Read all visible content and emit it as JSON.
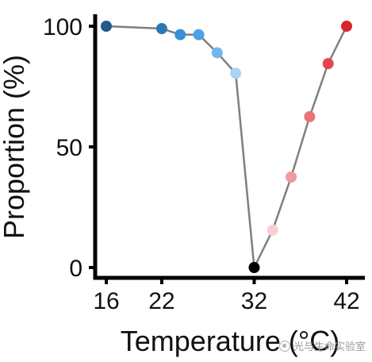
{
  "chart_data": {
    "type": "line",
    "title": "",
    "xlabel": "Temperature (°C)",
    "ylabel": "Proportion (%)",
    "xlim": [
      15,
      42.5
    ],
    "ylim": [
      -5,
      105
    ],
    "xticks": [
      16,
      22,
      32,
      42
    ],
    "yticks": [
      0,
      50,
      100
    ],
    "grid": false,
    "legend": "none",
    "line_color": "#7f7f7f",
    "points": [
      {
        "x": 16,
        "y": 100,
        "color": "#1f5a8e"
      },
      {
        "x": 22,
        "y": 99,
        "color": "#2878b8"
      },
      {
        "x": 24,
        "y": 96.5,
        "color": "#3a8fd6"
      },
      {
        "x": 26,
        "y": 96.5,
        "color": "#4da1e6"
      },
      {
        "x": 28,
        "y": 89,
        "color": "#72b7ee"
      },
      {
        "x": 30,
        "y": 80.5,
        "color": "#a9d3f7"
      },
      {
        "x": 32,
        "y": 0,
        "color": "#000000"
      },
      {
        "x": 34,
        "y": 15.5,
        "color": "#f8cfd2"
      },
      {
        "x": 36,
        "y": 37.5,
        "color": "#f0999f"
      },
      {
        "x": 38,
        "y": 62.5,
        "color": "#e87378"
      },
      {
        "x": 40,
        "y": 84.5,
        "color": "#e2474f"
      },
      {
        "x": 42,
        "y": 100,
        "color": "#d8262e"
      }
    ]
  },
  "watermark": {
    "text": "光与生命实验室",
    "icon": "wechat-icon"
  }
}
